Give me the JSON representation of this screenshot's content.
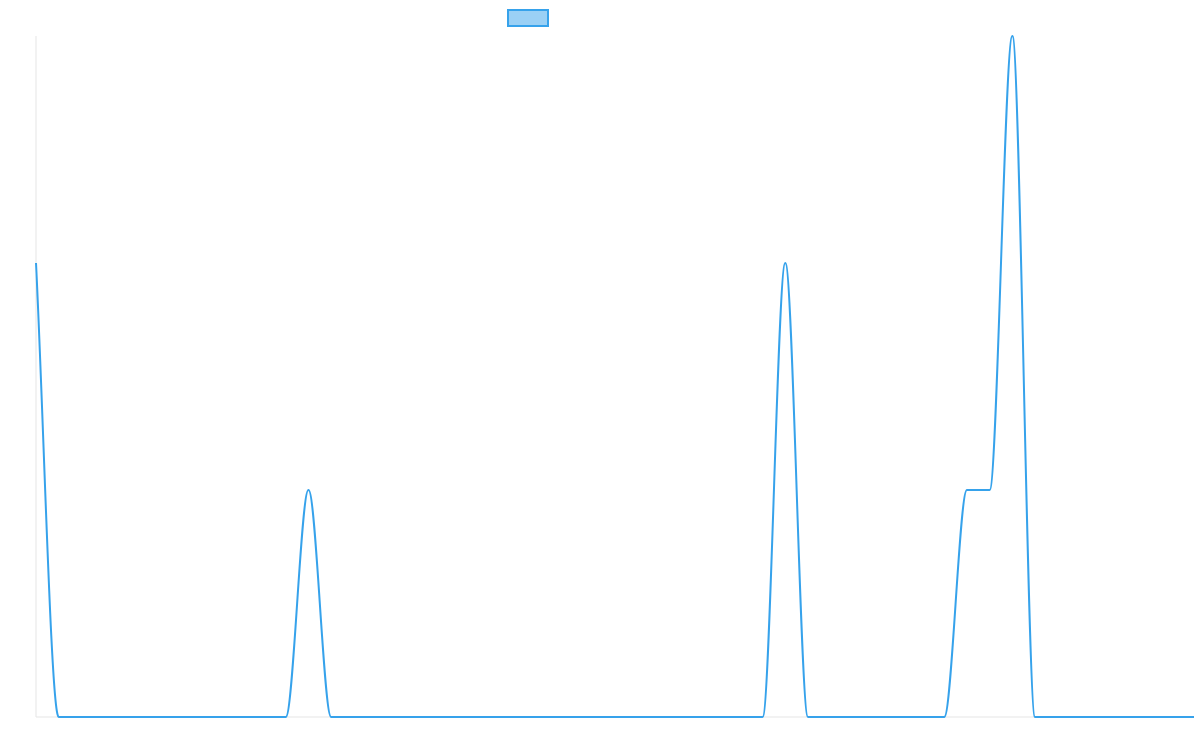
{
  "chart_data": {
    "type": "line",
    "title": "",
    "xlabel": "",
    "ylabel": "",
    "legend": {
      "placement": "top-center",
      "entries": [
        {
          "label": "",
          "fill_color": "#9AD0F5",
          "border_color": "#36A2EB"
        }
      ]
    },
    "grid": false,
    "ylim": [
      0,
      3
    ],
    "xlim": [
      0,
      51
    ],
    "series": [
      {
        "color": "#36A2EB",
        "x": [
          0,
          1,
          11,
          12,
          13,
          32,
          33,
          34,
          40,
          41,
          42,
          43,
          44,
          45,
          51
        ],
        "y": [
          2,
          0,
          0,
          1,
          0,
          0,
          2,
          0,
          0,
          1,
          1,
          3,
          0,
          0,
          0
        ]
      }
    ]
  }
}
